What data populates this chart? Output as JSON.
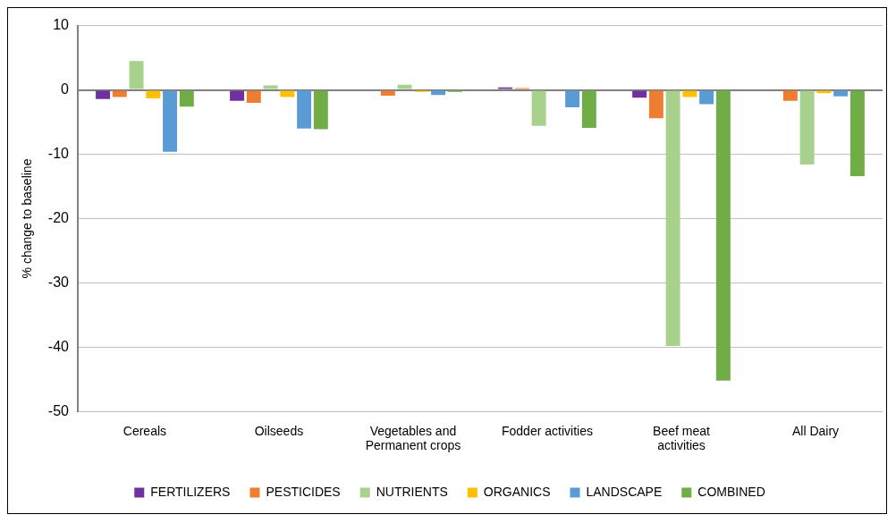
{
  "chart_data": {
    "type": "bar",
    "ylabel": "% change to baseline",
    "categories": [
      "Cereals",
      "Oilseeds",
      "Vegetables and Permanent crops",
      "Fodder activities",
      "Beef meat activities",
      "All Dairy"
    ],
    "series": [
      {
        "name": "FERTILIZERS",
        "color": "#7030a0",
        "values": [
          -1.4,
          -1.7,
          0,
          0.4,
          -1.2,
          0
        ]
      },
      {
        "name": "PESTICIDES",
        "color": "#ed7d31",
        "values": [
          -1.1,
          -2.0,
          -0.9,
          0.3,
          -4.4,
          -1.7
        ]
      },
      {
        "name": "NUTRIENTS",
        "color": "#a9d18e",
        "values": [
          4.5,
          0.7,
          0.8,
          -5.6,
          -39.8,
          -11.6
        ]
      },
      {
        "name": "ORGANICS",
        "color": "#ffc000",
        "values": [
          -1.3,
          -1.1,
          -0.3,
          0,
          -1.1,
          -0.5
        ]
      },
      {
        "name": "LANDSCAPE",
        "color": "#5b9bd5",
        "values": [
          -9.6,
          -6.0,
          -0.8,
          -2.7,
          -2.2,
          -1.0
        ]
      },
      {
        "name": "COMBINED",
        "color": "#70ad47",
        "values": [
          -2.6,
          -6.1,
          -0.3,
          -5.9,
          -45.2,
          -13.4
        ]
      }
    ],
    "ylim": [
      -50,
      10
    ],
    "yticks": [
      -50,
      -40,
      -30,
      -20,
      -10,
      0,
      10
    ],
    "grid": "y",
    "legend": "bottom"
  }
}
